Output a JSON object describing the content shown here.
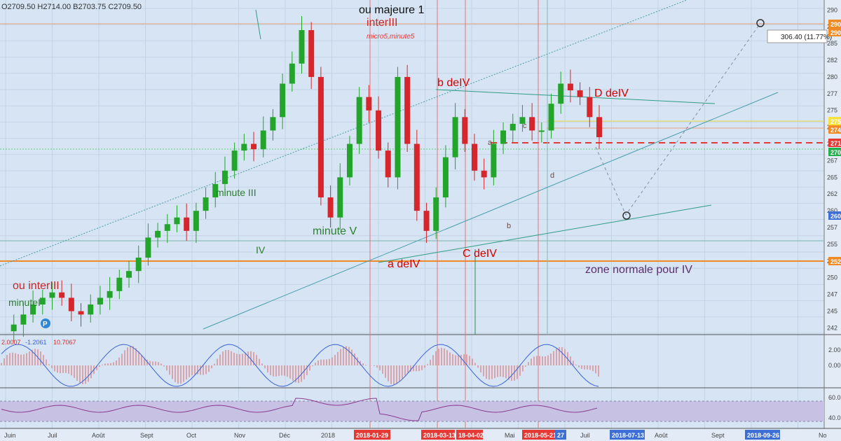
{
  "ohlc_header": {
    "open": "O2709.50",
    "high": "H2714.00",
    "low": "B2703.75",
    "close": "C2709.50"
  },
  "annotations": {
    "ou_majeure": "ou majeure 1",
    "inter_iii": "interIII",
    "micro": "micro5,minute5",
    "b_de_iv": "b deIV",
    "d_de_iv": "D deIV",
    "a_de_iv": "a deIV",
    "c_de_iv": "C deIV",
    "minute_iii": "minute III",
    "minute_v": "minute V",
    "minute_i": "minuteI",
    "iv": "IV",
    "ou_inter_iii": "ou interIII",
    "zone": "zone normale pour IV",
    "small_a": "a",
    "small_b": "b",
    "small_c": "c",
    "small_d": "d"
  },
  "measure_label": "306.40 (11.77%)",
  "event_marker": "P",
  "price_tags": [
    {
      "text": "290",
      "color": "#f08a24"
    },
    {
      "text": "290",
      "color": "#f08a24"
    },
    {
      "text": "275",
      "color": "#f5e23c"
    },
    {
      "text": "274",
      "color": "#f08a24"
    },
    {
      "text": "271",
      "color": "#e53935"
    },
    {
      "text": "270",
      "color": "#22b14c"
    },
    {
      "text": "260",
      "color": "#3d6fd4"
    },
    {
      "text": "252",
      "color": "#f08a24"
    }
  ],
  "macd_values": {
    "v1": "2.0007",
    "v2": "-1.2061",
    "v3": "10.7067"
  },
  "macd_axis": [
    "2.00",
    "0.00"
  ],
  "rsi_axis": [
    "60.0",
    "40.0"
  ],
  "x_axis": {
    "labels": [
      "Juin",
      "Juil",
      "Août",
      "Sept",
      "Oct",
      "Nov",
      "Déc",
      "2018",
      "Mai",
      "Juil",
      "Août",
      "Sept",
      "No"
    ],
    "highlighted": [
      {
        "text": "2018-01-29",
        "color": "#e53935"
      },
      {
        "text": "2018-03-13",
        "color": "#e53935"
      },
      {
        "text": "18-04-02",
        "color": "#e53935"
      },
      {
        "text": "2018-05-21",
        "color": "#e53935"
      },
      {
        "text": "27",
        "color": "#3d6fd4"
      },
      {
        "text": "2018-07-13",
        "color": "#3d6fd4"
      },
      {
        "text": "2018-09-26",
        "color": "#3d6fd4"
      }
    ]
  },
  "chart_data": {
    "type": "line",
    "series": [
      {
        "values": [
          2420,
          2430,
          2445,
          2460,
          2470,
          2478,
          2470,
          2450,
          2445,
          2460,
          2470,
          2480,
          2500,
          2510,
          2530,
          2560,
          2570,
          2580,
          2590,
          2570,
          2600,
          2620,
          2640,
          2660,
          2690,
          2700,
          2692,
          2720,
          2740,
          2790,
          2820,
          2870,
          2800,
          2620,
          2590,
          2650,
          2700,
          2770,
          2750,
          2690,
          2650,
          2800,
          2700,
          2600,
          2570,
          2620,
          2680,
          2740,
          2700,
          2660,
          2650,
          2700,
          2720,
          2730,
          2740,
          2720,
          2720,
          2760,
          2790,
          2780,
          2770,
          2740,
          2710
        ]
      }
    ],
    "ylim": [
      2415,
      2915
    ],
    "colors": {
      "up": "#22a52a",
      "down": "#d6262c",
      "macd_hist": "#e06060",
      "macd_line": "#3a63d8",
      "rsi": "#8a3a8f",
      "orange": "#f08a24",
      "red": "#e53935"
    },
    "grid": true
  }
}
